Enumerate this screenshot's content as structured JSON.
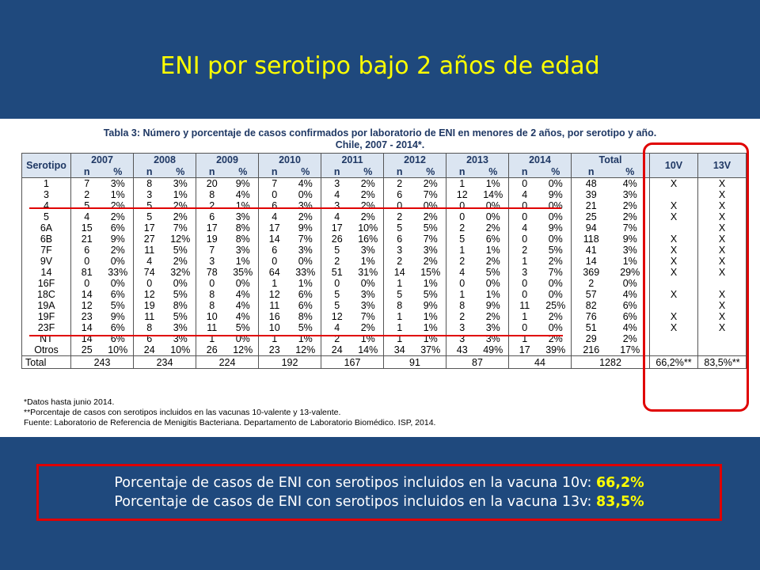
{
  "slide": {
    "title": "ENI por serotipo bajo 2 años de edad"
  },
  "table": {
    "heading_line1": "Tabla 3: Número y porcentaje de casos confirmados por laboratorio de ENI en menores de 2 años, por serotipo y año.",
    "heading_line2": "Chile, 2007 - 2014*.",
    "serotipo_header": "Serotipo",
    "years": [
      "2007",
      "2008",
      "2009",
      "2010",
      "2011",
      "2012",
      "2013",
      "2014"
    ],
    "total_header": "Total",
    "n_label": "n",
    "pct_label": "%",
    "vaccine_headers": [
      "10V",
      "13V"
    ],
    "rows": [
      {
        "s": "1",
        "c": [
          "7",
          "3%",
          "8",
          "3%",
          "20",
          "9%",
          "7",
          "4%",
          "3",
          "2%",
          "2",
          "2%",
          "1",
          "1%",
          "0",
          "0%",
          "48",
          "4%"
        ],
        "v10": "X",
        "v13": "X"
      },
      {
        "s": "3",
        "c": [
          "2",
          "1%",
          "3",
          "1%",
          "8",
          "4%",
          "0",
          "0%",
          "4",
          "2%",
          "6",
          "7%",
          "12",
          "14%",
          "4",
          "9%",
          "39",
          "3%"
        ],
        "v10": "",
        "v13": "X"
      },
      {
        "s": "4",
        "c": [
          "5",
          "2%",
          "5",
          "2%",
          "2",
          "1%",
          "6",
          "3%",
          "3",
          "2%",
          "0",
          "0%",
          "0",
          "0%",
          "0",
          "0%",
          "21",
          "2%"
        ],
        "v10": "X",
        "v13": "X"
      },
      {
        "s": "5",
        "c": [
          "4",
          "2%",
          "5",
          "2%",
          "6",
          "3%",
          "4",
          "2%",
          "4",
          "2%",
          "2",
          "2%",
          "0",
          "0%",
          "0",
          "0%",
          "25",
          "2%"
        ],
        "v10": "X",
        "v13": "X"
      },
      {
        "s": "6A",
        "c": [
          "15",
          "6%",
          "17",
          "7%",
          "17",
          "8%",
          "17",
          "9%",
          "17",
          "10%",
          "5",
          "5%",
          "2",
          "2%",
          "4",
          "9%",
          "94",
          "7%"
        ],
        "v10": "",
        "v13": "X"
      },
      {
        "s": "6B",
        "c": [
          "21",
          "9%",
          "27",
          "12%",
          "19",
          "8%",
          "14",
          "7%",
          "26",
          "16%",
          "6",
          "7%",
          "5",
          "6%",
          "0",
          "0%",
          "118",
          "9%"
        ],
        "v10": "X",
        "v13": "X"
      },
      {
        "s": "7F",
        "c": [
          "6",
          "2%",
          "11",
          "5%",
          "7",
          "3%",
          "6",
          "3%",
          "5",
          "3%",
          "3",
          "3%",
          "1",
          "1%",
          "2",
          "5%",
          "41",
          "3%"
        ],
        "v10": "X",
        "v13": "X"
      },
      {
        "s": "9V",
        "c": [
          "0",
          "0%",
          "4",
          "2%",
          "3",
          "1%",
          "0",
          "0%",
          "2",
          "1%",
          "2",
          "2%",
          "2",
          "2%",
          "1",
          "2%",
          "14",
          "1%"
        ],
        "v10": "X",
        "v13": "X"
      },
      {
        "s": "14",
        "c": [
          "81",
          "33%",
          "74",
          "32%",
          "78",
          "35%",
          "64",
          "33%",
          "51",
          "31%",
          "14",
          "15%",
          "4",
          "5%",
          "3",
          "7%",
          "369",
          "29%"
        ],
        "v10": "X",
        "v13": "X"
      },
      {
        "s": "16F",
        "c": [
          "0",
          "0%",
          "0",
          "0%",
          "0",
          "0%",
          "1",
          "1%",
          "0",
          "0%",
          "1",
          "1%",
          "0",
          "0%",
          "0",
          "0%",
          "2",
          "0%"
        ],
        "v10": "",
        "v13": ""
      },
      {
        "s": "18C",
        "c": [
          "14",
          "6%",
          "12",
          "5%",
          "8",
          "4%",
          "12",
          "6%",
          "5",
          "3%",
          "5",
          "5%",
          "1",
          "1%",
          "0",
          "0%",
          "57",
          "4%"
        ],
        "v10": "X",
        "v13": "X"
      },
      {
        "s": "19A",
        "c": [
          "12",
          "5%",
          "19",
          "8%",
          "8",
          "4%",
          "11",
          "6%",
          "5",
          "3%",
          "8",
          "9%",
          "8",
          "9%",
          "11",
          "25%",
          "82",
          "6%"
        ],
        "v10": "",
        "v13": "X"
      },
      {
        "s": "19F",
        "c": [
          "23",
          "9%",
          "11",
          "5%",
          "10",
          "4%",
          "16",
          "8%",
          "12",
          "7%",
          "1",
          "1%",
          "2",
          "2%",
          "1",
          "2%",
          "76",
          "6%"
        ],
        "v10": "X",
        "v13": "X"
      },
      {
        "s": "23F",
        "c": [
          "14",
          "6%",
          "8",
          "3%",
          "11",
          "5%",
          "10",
          "5%",
          "4",
          "2%",
          "1",
          "1%",
          "3",
          "3%",
          "0",
          "0%",
          "51",
          "4%"
        ],
        "v10": "X",
        "v13": "X"
      },
      {
        "s": "NT",
        "c": [
          "14",
          "6%",
          "6",
          "3%",
          "1",
          "0%",
          "1",
          "1%",
          "2",
          "1%",
          "1",
          "1%",
          "3",
          "3%",
          "1",
          "2%",
          "29",
          "2%"
        ],
        "v10": "",
        "v13": ""
      },
      {
        "s": "Otros",
        "c": [
          "25",
          "10%",
          "24",
          "10%",
          "26",
          "12%",
          "23",
          "12%",
          "24",
          "14%",
          "34",
          "37%",
          "43",
          "49%",
          "17",
          "39%",
          "216",
          "17%"
        ],
        "v10": "",
        "v13": ""
      }
    ],
    "total_row": {
      "label": "Total",
      "values": [
        "243",
        "234",
        "224",
        "192",
        "167",
        "91",
        "87",
        "44",
        "1282"
      ],
      "v10": "66,2%**",
      "v13": "83,5%**"
    },
    "footnotes": [
      "*Datos hasta junio 2014.",
      "**Porcentaje de casos con serotipos incluidos en las vacunas 10-valente y 13-valente.",
      "Fuente: Laboratorio de Referencia de Menigitis Bacteriana. Departamento de Laboratorio Biomédico. ISP, 2014."
    ]
  },
  "summary": {
    "line1_prefix": "Porcentaje de casos de ENI con serotipos incluidos en la vacuna  10v: ",
    "line1_value": "66,2%",
    "line2_prefix": "Porcentaje de casos de ENI con serotipos incluidos en la vacuna 13v: ",
    "line2_value": "83,5%"
  },
  "colors": {
    "background": "#1f497d",
    "title": "#ffff00",
    "highlight_red": "#e00000",
    "table_header_fill": "#dbe5f1"
  }
}
